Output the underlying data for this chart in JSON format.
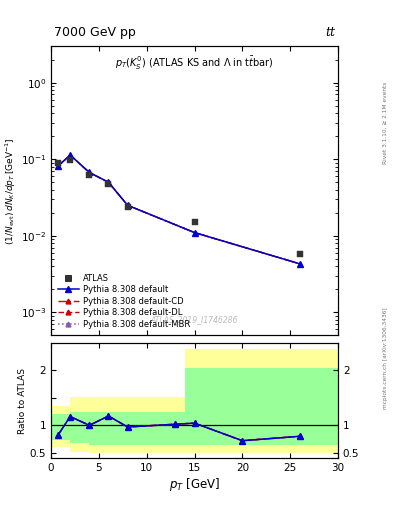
{
  "title_top": "7000 GeV pp",
  "title_top_right": "tt",
  "inner_title": "p_{T}(K^{0}_{S}) (ATLAS KS and \\Lambda in t\\bar{t}bar)",
  "watermark": "ATLAS_2019_I1746286",
  "rivet_label": "Rivet 3.1.10, ≥ 2.1M events",
  "mcplots_label": "mcplots.cern.ch [arXiv:1306.3436]",
  "ylabel_main": "(1/N_{evt}) dN_{K}/dp_{T} [GeV^{-1}]",
  "ylabel_ratio": "Ratio to ATLAS",
  "xlabel": "p_{T} [GeV]",
  "xlim": [
    0,
    30
  ],
  "ylim_main": [
    0.0005,
    3
  ],
  "ylim_ratio": [
    0.4,
    2.5
  ],
  "atlas_x": [
    0.75,
    2.0,
    4.0,
    6.0,
    8.0,
    15.0,
    26.0
  ],
  "atlas_y": [
    0.09,
    0.097,
    0.063,
    0.047,
    0.024,
    0.015,
    0.0058
  ],
  "mc_x": [
    0.75,
    2.0,
    4.0,
    6.0,
    8.0,
    15.0,
    26.0
  ],
  "mc_default_y": [
    0.082,
    0.113,
    0.067,
    0.05,
    0.025,
    0.011,
    0.0043
  ],
  "mc_cd_y": [
    0.082,
    0.113,
    0.067,
    0.05,
    0.025,
    0.011,
    0.0043
  ],
  "mc_dl_y": [
    0.082,
    0.113,
    0.067,
    0.05,
    0.025,
    0.011,
    0.0043
  ],
  "mc_mbr_y": [
    0.082,
    0.113,
    0.067,
    0.05,
    0.025,
    0.011,
    0.0043
  ],
  "ratio_x": [
    0.75,
    2.0,
    4.0,
    6.0,
    8.0,
    13.0,
    15.0,
    20.0,
    26.0
  ],
  "ratio_default": [
    0.83,
    1.16,
    1.0,
    1.17,
    0.97,
    1.02,
    1.04,
    0.72,
    0.8
  ],
  "ratio_cd": [
    0.83,
    1.16,
    1.0,
    1.17,
    0.97,
    1.02,
    1.04,
    0.72,
    0.8
  ],
  "ratio_dl": [
    0.83,
    1.16,
    1.0,
    1.17,
    0.97,
    1.02,
    1.04,
    0.72,
    0.8
  ],
  "ratio_mbr": [
    0.83,
    1.16,
    1.0,
    1.17,
    0.97,
    1.02,
    1.04,
    0.72,
    0.8
  ],
  "band_edges": [
    0,
    2,
    4,
    14,
    20,
    30
  ],
  "band_yel_lo": [
    0.6,
    0.52,
    0.49,
    0.49,
    0.49
  ],
  "band_yel_hi": [
    1.35,
    1.52,
    1.52,
    2.4,
    2.4
  ],
  "band_grn_lo": [
    0.73,
    0.68,
    0.65,
    0.65,
    0.65
  ],
  "band_grn_hi": [
    1.2,
    1.25,
    1.25,
    2.05,
    2.05
  ],
  "color_atlas": "#333333",
  "color_default": "#0000cc",
  "color_cd": "#cc0000",
  "color_dl": "#cc0000",
  "color_mbr": "#8855bb",
  "color_yellow": "#ffff99",
  "color_green": "#99ff99",
  "bg_color": "#ffffff"
}
